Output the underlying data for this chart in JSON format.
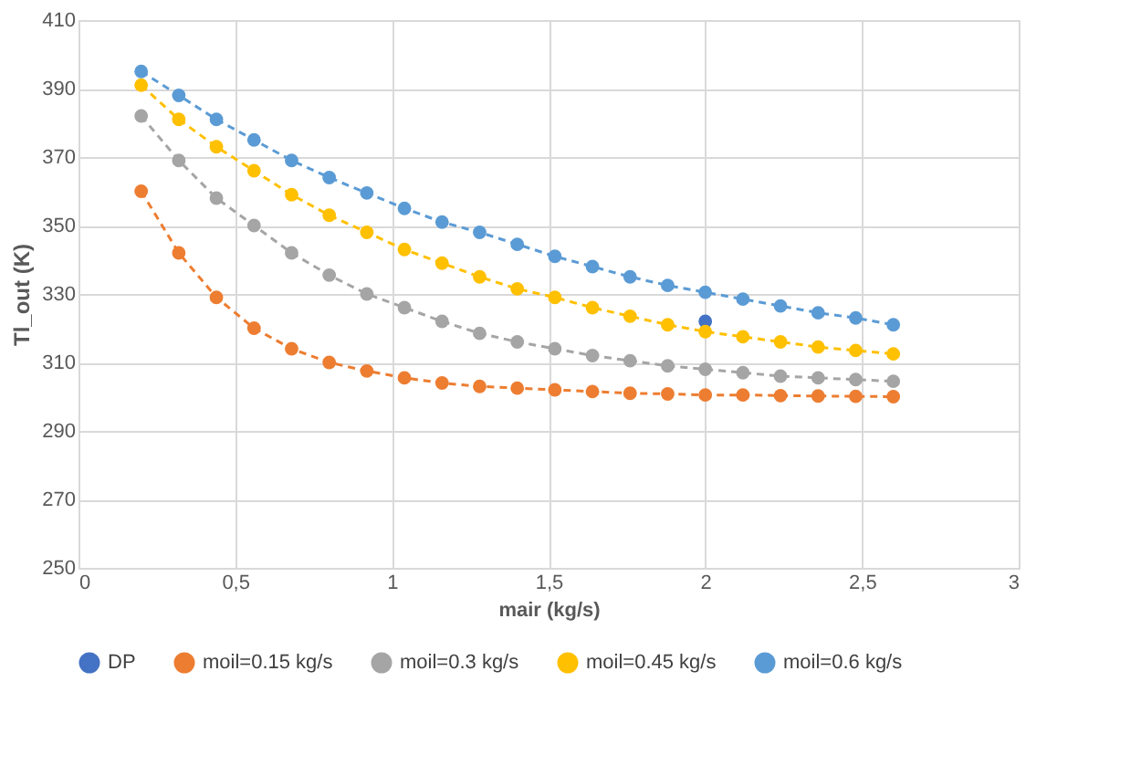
{
  "chart_data": {
    "type": "line",
    "xlabel": "mair (kg/s)",
    "ylabel": "Tl_out  (K)",
    "x": [
      0.2,
      0.32,
      0.44,
      0.56,
      0.68,
      0.8,
      0.92,
      1.04,
      1.16,
      1.28,
      1.4,
      1.52,
      1.64,
      1.76,
      1.88,
      2.0,
      2.12,
      2.24,
      2.36,
      2.48,
      2.6
    ],
    "series": [
      {
        "name": "DP",
        "type": "scatter",
        "color": "#4472c4",
        "x": [
          2.0
        ],
        "values": [
          322
        ]
      },
      {
        "name": "moil=0.15 kg/s",
        "color": "#ed7d31",
        "values": [
          360,
          342,
          329,
          320,
          314,
          310,
          307.5,
          305.5,
          304,
          303,
          302.5,
          302,
          301.5,
          301,
          300.8,
          300.5,
          300.5,
          300.3,
          300.2,
          300.1,
          300
        ]
      },
      {
        "name": "moil=0.3 kg/s",
        "color": "#a5a5a5",
        "values": [
          382,
          369,
          358,
          350,
          342,
          335.5,
          330,
          326,
          322,
          318.5,
          316,
          314,
          312,
          310.5,
          309,
          308,
          307,
          306,
          305.5,
          305,
          304.5
        ]
      },
      {
        "name": "moil=0.45 kg/s",
        "color": "#ffc000",
        "values": [
          391,
          381,
          373,
          366,
          359,
          353,
          348,
          343,
          339,
          335,
          331.5,
          329,
          326,
          323.5,
          321,
          319,
          317.5,
          316,
          314.5,
          313.5,
          312.5
        ]
      },
      {
        "name": "moil=0.6 kg/s",
        "color": "#5b9bd5",
        "values": [
          395,
          388,
          381,
          375,
          369,
          364,
          359.5,
          355,
          351,
          348,
          344.5,
          341,
          338,
          335,
          332.5,
          330.5,
          328.5,
          326.5,
          324.5,
          323,
          321
        ]
      }
    ],
    "xlim": [
      0,
      3
    ],
    "xticks": [
      0,
      {
        "value": 0.5,
        "label": "0,5"
      },
      1,
      {
        "value": 1.5,
        "label": "1,5"
      },
      2,
      {
        "value": 2.5,
        "label": "2,5"
      },
      3
    ],
    "ylim": [
      250,
      410
    ],
    "yticks": [
      250,
      270,
      290,
      310,
      330,
      350,
      370,
      390,
      410
    ],
    "grid": true,
    "legend": "bottom",
    "marker": "circle",
    "line_style": "dashed"
  }
}
